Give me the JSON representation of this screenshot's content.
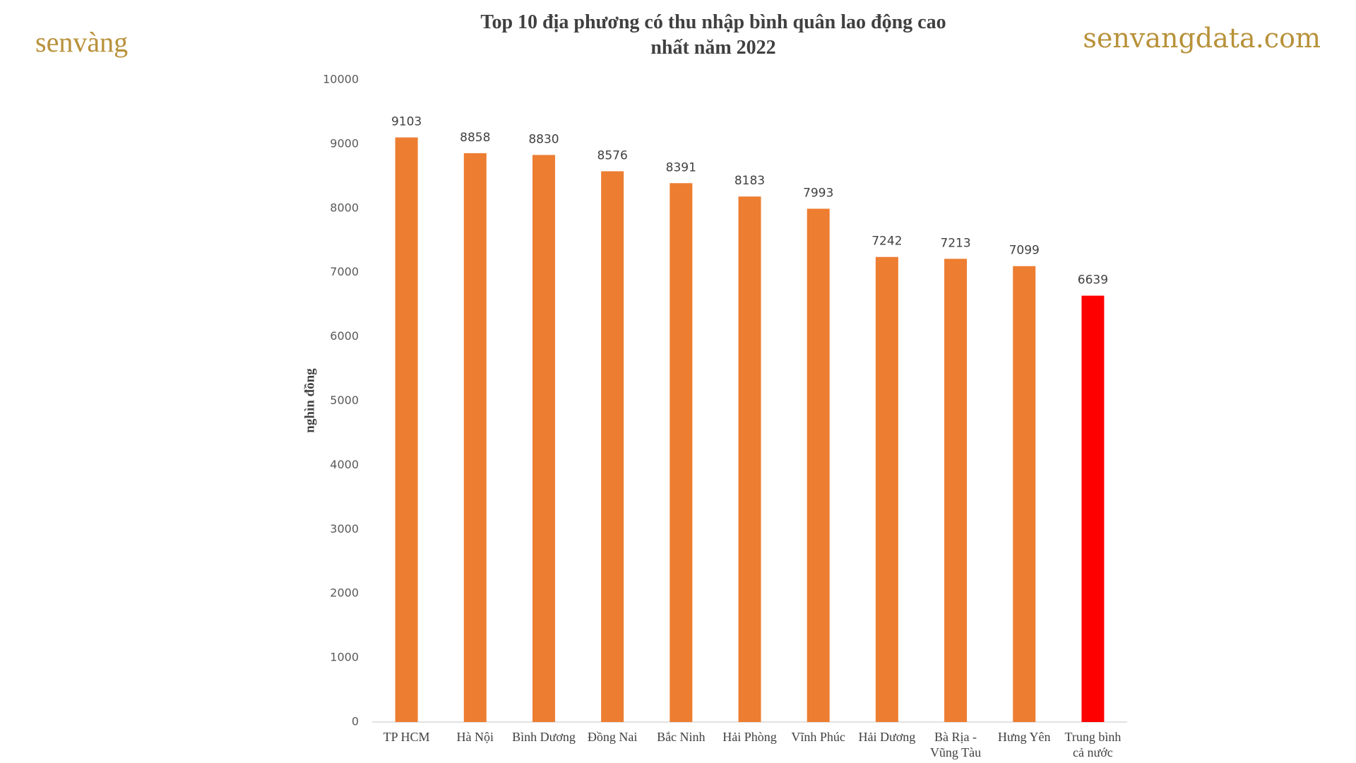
{
  "branding": {
    "logo": "senvàng",
    "site": "senvangdata.com"
  },
  "chart_data": {
    "type": "bar",
    "title": "Top 10 địa phương có thu nhập bình quân lao động cao nhất năm 2022",
    "y_label": "nghìn đồng",
    "categories": [
      "TP HCM",
      "Hà Nội",
      "Bình Dương",
      "Đồng Nai",
      "Bắc Ninh",
      "Hải Phòng",
      "Vĩnh Phúc",
      "Hải Dương",
      "Bà Rịa - Vũng Tàu",
      "Hưng Yên",
      "Trung bình cả nước"
    ],
    "values": [
      9103,
      8858,
      8830,
      8576,
      8391,
      8183,
      7993,
      7242,
      7213,
      7099,
      6639
    ],
    "colors": [
      "#ed7d31",
      "#ed7d31",
      "#ed7d31",
      "#ed7d31",
      "#ed7d31",
      "#ed7d31",
      "#ed7d31",
      "#ed7d31",
      "#ed7d31",
      "#ed7d31",
      "#ff0000"
    ],
    "ylim": [
      0,
      10000
    ],
    "yticks": [
      0,
      1000,
      2000,
      3000,
      4000,
      5000,
      6000,
      7000,
      8000,
      9000,
      10000
    ],
    "grid": false
  }
}
